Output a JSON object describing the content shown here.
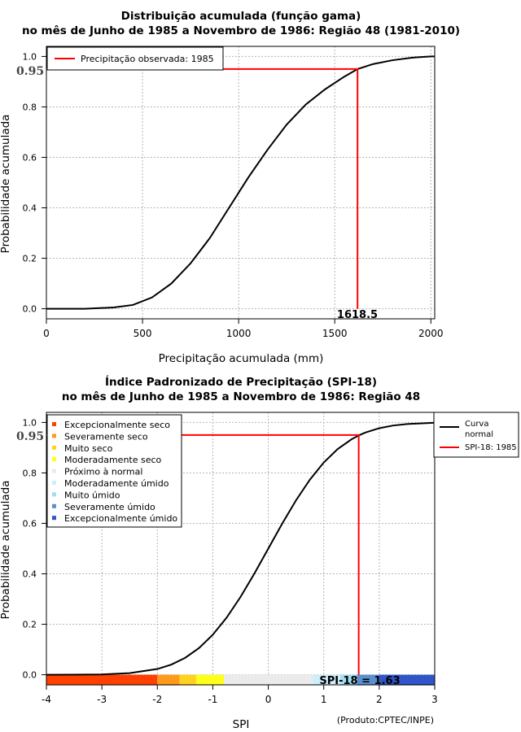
{
  "chart_data": [
    {
      "type": "line",
      "title": "Distribuição acumulada (função gama)",
      "subtitle": "no mês de Junho de 1985 a Novembro de 1986: Região 48 (1981-2010)",
      "xlabel": "Precipitação acumulada (mm)",
      "ylabel": "Probabilidade acumulada",
      "xlim": [
        0,
        2020
      ],
      "ylim": [
        -0.04,
        1.04
      ],
      "xticks": [
        "0",
        "500",
        "1000",
        "1500",
        "2000"
      ],
      "yticks": [
        "0.0",
        "0.2",
        "0.4",
        "0.6",
        "0.8",
        "1.0"
      ],
      "grid": true,
      "legend_position": "top-left",
      "series": [
        {
          "name": "",
          "color": "#000000",
          "x": [
            0,
            200,
            350,
            450,
            550,
            650,
            750,
            850,
            950,
            1050,
            1150,
            1250,
            1350,
            1450,
            1550,
            1618.5,
            1700,
            1800,
            1900,
            2000,
            2020
          ],
          "y": [
            0.0,
            0.0,
            0.005,
            0.015,
            0.045,
            0.1,
            0.18,
            0.28,
            0.4,
            0.52,
            0.63,
            0.73,
            0.81,
            0.87,
            0.92,
            0.95,
            0.97,
            0.985,
            0.995,
            1.0,
            1.0
          ]
        },
        {
          "name": "Precipitação observada: 1985",
          "color": "#ff0000",
          "x": [
            0,
            1618.5,
            1618.5
          ],
          "y": [
            0.95,
            0.95,
            0.0
          ]
        }
      ],
      "annotations": {
        "prob_label": "0.95",
        "value_label": "1618.5"
      }
    },
    {
      "type": "line",
      "title": "Índice Padronizado de Precipitação (SPI-18)",
      "subtitle": "no mês de Junho de 1985 a Novembro de 1986: Região 48",
      "xlabel": "SPI",
      "ylabel": "Probabilidade acumulada",
      "xlim": [
        -4,
        3
      ],
      "ylim": [
        -0.04,
        1.04
      ],
      "xticks": [
        "-4",
        "-3",
        "-2",
        "-1",
        "0",
        "1",
        "2",
        "3"
      ],
      "yticks": [
        "0.0",
        "0.2",
        "0.4",
        "0.6",
        "0.8",
        "1.0"
      ],
      "grid": true,
      "legend_position": "top-left",
      "legend2_position": "top-right, outside",
      "series": [
        {
          "name": "Curva normal",
          "color": "#000000",
          "x": [
            -4,
            -3.5,
            -3,
            -2.5,
            -2,
            -1.75,
            -1.5,
            -1.25,
            -1,
            -0.75,
            -0.5,
            -0.25,
            0,
            0.25,
            0.5,
            0.75,
            1,
            1.25,
            1.5,
            1.645,
            1.75,
            2,
            2.25,
            2.5,
            3
          ],
          "y": [
            0.0,
            0.0002,
            0.0013,
            0.0062,
            0.0228,
            0.0401,
            0.0668,
            0.1056,
            0.1587,
            0.2266,
            0.3085,
            0.4013,
            0.5,
            0.5987,
            0.6915,
            0.7734,
            0.8413,
            0.8944,
            0.9332,
            0.95,
            0.9599,
            0.9772,
            0.9878,
            0.9938,
            0.9987
          ]
        },
        {
          "name": "SPI-18: 1985",
          "color": "#ff0000",
          "x": [
            -4,
            1.63,
            1.63
          ],
          "y": [
            0.95,
            0.95,
            0.0
          ]
        }
      ],
      "categories": [
        {
          "label": "Excepcionalmente seco",
          "color": "#ff4000",
          "from": -4,
          "to": -2
        },
        {
          "label": "Severamente seco",
          "color": "#ff9a1a",
          "from": -2,
          "to": -1.6
        },
        {
          "label": "Muito seco",
          "color": "#ffd21f",
          "from": -1.6,
          "to": -1.3
        },
        {
          "label": "Moderadamente seco",
          "color": "#ffff1a",
          "from": -1.3,
          "to": -0.8
        },
        {
          "label": "Próximo à normal",
          "color": "#ebebeb",
          "from": -0.8,
          "to": 0.8
        },
        {
          "label": "Moderadamente úmido",
          "color": "#cdeefa",
          "from": 0.8,
          "to": 1.3
        },
        {
          "label": "Muito úmido",
          "color": "#a4dcf4",
          "from": 1.3,
          "to": 1.6
        },
        {
          "label": "Severamente úmido",
          "color": "#5a8fd0",
          "from": 1.6,
          "to": 2.0
        },
        {
          "label": "Excepcionalmente úmido",
          "color": "#2f55c8",
          "from": 2.0,
          "to": 3.0
        }
      ],
      "annotations": {
        "prob_label": "0.95",
        "value_label": "SPI-18 = 1.63"
      },
      "credit": "(Produto:CPTEC/INPE)"
    }
  ]
}
